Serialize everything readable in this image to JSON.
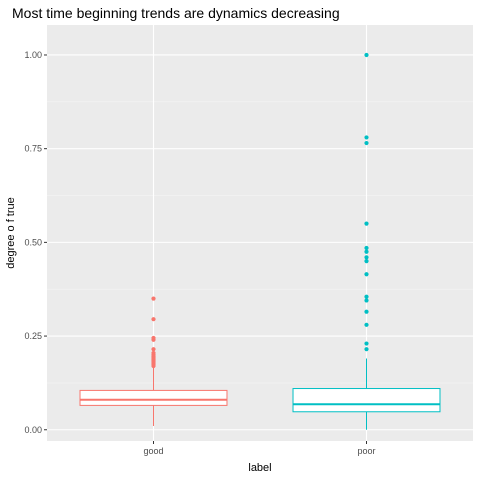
{
  "chart_data": {
    "type": "box",
    "title": "Most time beginning trends are dynamics decreasing",
    "xlabel": "label",
    "ylabel": "degree o f true",
    "categories": [
      "good",
      "poor"
    ],
    "ylim": [
      -0.03,
      1.08
    ],
    "yticks": [
      0.0,
      0.25,
      0.5,
      0.75,
      1.0
    ],
    "ytick_labels": [
      "0.00",
      "0.25",
      "0.50",
      "0.75",
      "1.00"
    ],
    "grid": true,
    "legend": "none",
    "boxes": [
      {
        "category": "good",
        "color": "#F8766D",
        "whisker_low": 0.01,
        "q1": 0.065,
        "median": 0.08,
        "q3": 0.105,
        "whisker_high": 0.165,
        "outliers": [
          0.17,
          0.175,
          0.178,
          0.181,
          0.184,
          0.187,
          0.19,
          0.193,
          0.196,
          0.2,
          0.205,
          0.215,
          0.24,
          0.245,
          0.295,
          0.35
        ]
      },
      {
        "category": "poor",
        "color": "#00BFC4",
        "whisker_low": 0.0,
        "q1": 0.048,
        "median": 0.068,
        "q3": 0.11,
        "whisker_high": 0.19,
        "outliers": [
          0.215,
          0.23,
          0.28,
          0.315,
          0.345,
          0.355,
          0.415,
          0.45,
          0.46,
          0.475,
          0.485,
          0.55,
          0.765,
          0.78,
          1.0
        ]
      }
    ]
  }
}
